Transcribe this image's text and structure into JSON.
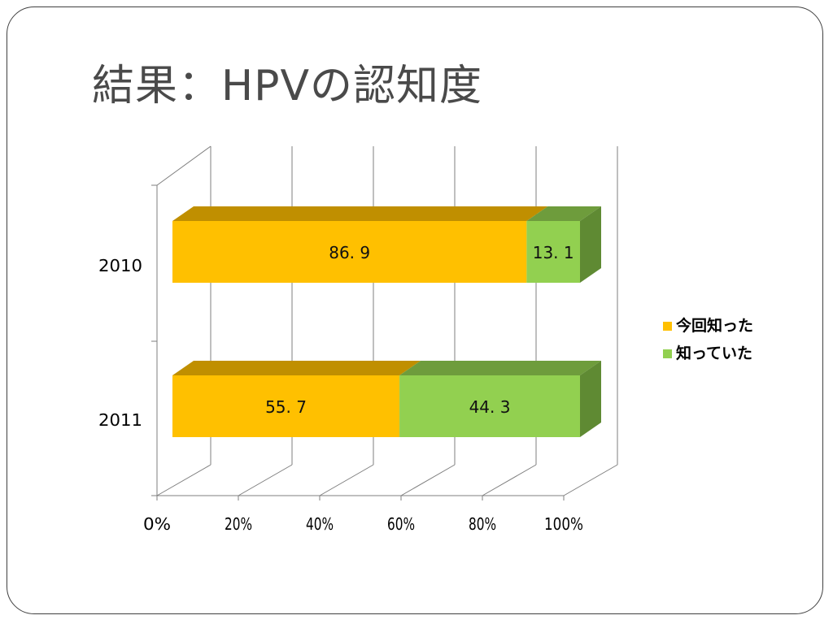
{
  "slide": {
    "title": "結果：HPVの認知度"
  },
  "colors": {
    "series1_front": "#FFC000",
    "series1_top": "#C08F00",
    "series2_front": "#92D050",
    "series2_top": "#6E9C3C",
    "series2_side": "#5F8A33",
    "grid": "#7f7f7f"
  },
  "chart_data": {
    "type": "bar",
    "orientation": "horizontal",
    "stacked": "percent",
    "three_d": true,
    "categories": [
      "2010",
      "2011"
    ],
    "series": [
      {
        "name": "今回知った",
        "values": [
          86.9,
          55.7
        ],
        "labels": [
          "86. 9",
          "55. 7"
        ]
      },
      {
        "name": "知っていた",
        "values": [
          13.1,
          44.3
        ],
        "labels": [
          "13. 1",
          "44. 3"
        ]
      }
    ],
    "xlim": [
      0,
      100
    ],
    "xticks": [
      "0%",
      "20%",
      "40%",
      "60%",
      "80%",
      "100%"
    ],
    "grid": true,
    "legend_position": "right"
  }
}
